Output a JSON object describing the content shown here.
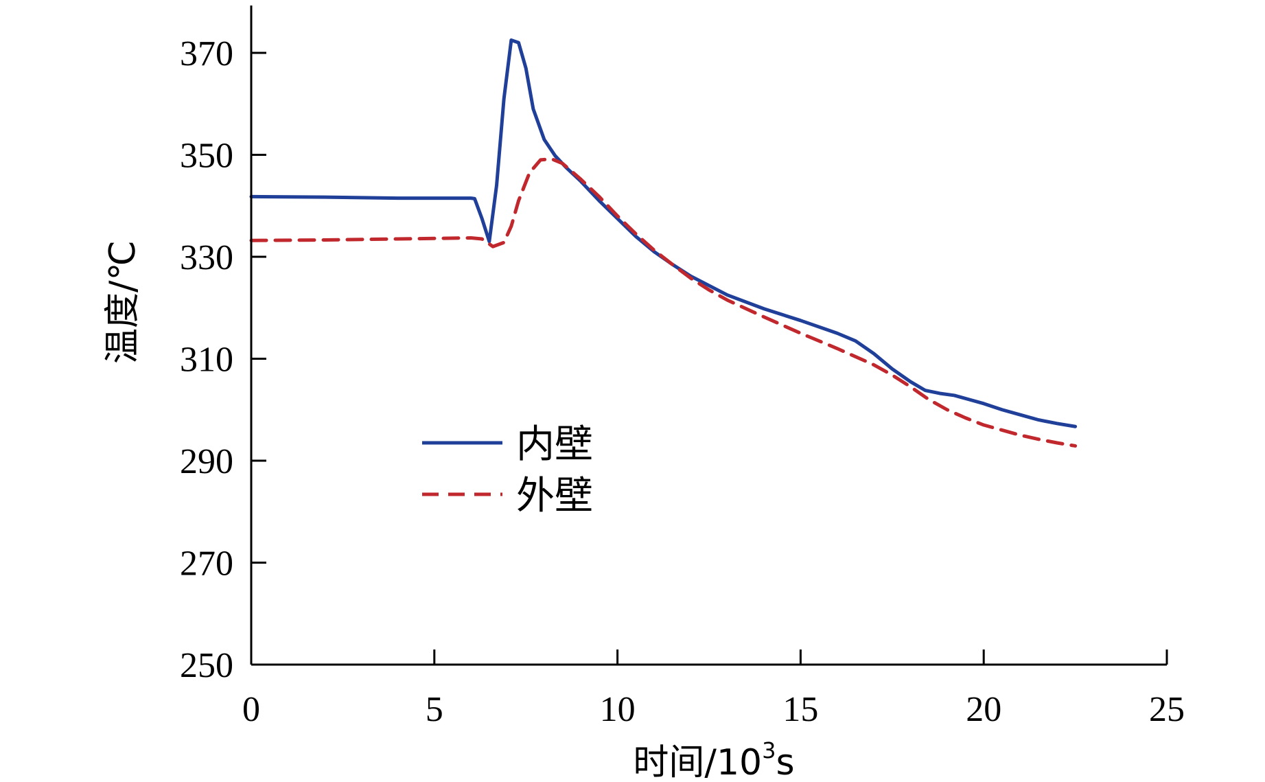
{
  "chart_data": {
    "type": "line",
    "title": "",
    "xlabel": "时间/10",
    "xlabel_sup": "3",
    "xlabel_suffix": "s",
    "ylabel": "温度/℃",
    "xlim": [
      0,
      25
    ],
    "ylim": [
      250,
      378
    ],
    "xticks": [
      0,
      5,
      10,
      15,
      20,
      25
    ],
    "yticks": [
      250,
      270,
      290,
      310,
      330,
      350,
      370
    ],
    "grid": false,
    "legend_position": "center-left",
    "series": [
      {
        "name": "内壁",
        "color": "#1f3f99",
        "style": "solid",
        "x": [
          0,
          2,
          4,
          6,
          6.1,
          6.3,
          6.5,
          6.7,
          6.9,
          7.1,
          7.3,
          7.5,
          7.7,
          8.0,
          8.3,
          8.6,
          9.0,
          9.5,
          10,
          10.5,
          11,
          11.5,
          12,
          13,
          14,
          15,
          16,
          16.5,
          17,
          17.5,
          18,
          18.4,
          18.8,
          19.2,
          19.6,
          20,
          20.5,
          21,
          21.5,
          22,
          22.5
        ],
        "y": [
          341.8,
          341.7,
          341.5,
          341.5,
          341.4,
          337.5,
          333.0,
          344.0,
          361.0,
          372.5,
          372.0,
          367.0,
          359.0,
          353.0,
          349.8,
          347.5,
          344.8,
          341.0,
          337.5,
          334.0,
          331.0,
          328.5,
          326.2,
          322.5,
          319.8,
          317.5,
          315.0,
          313.5,
          311.0,
          308.0,
          305.5,
          303.8,
          303.2,
          302.8,
          302.0,
          301.2,
          300.0,
          299.0,
          298.0,
          297.3,
          296.7
        ]
      },
      {
        "name": "外壁",
        "color": "#c0282d",
        "style": "dashed",
        "x": [
          0,
          2,
          4,
          6,
          6.3,
          6.6,
          6.9,
          7.1,
          7.3,
          7.6,
          7.9,
          8.2,
          8.5,
          9.0,
          9.5,
          10,
          10.5,
          11,
          11.5,
          12,
          12.5,
          13,
          14,
          15,
          16,
          17,
          17.5,
          18,
          18.5,
          19,
          19.5,
          20,
          20.5,
          21,
          21.5,
          22,
          22.5
        ],
        "y": [
          333.2,
          333.3,
          333.5,
          333.7,
          333.5,
          332.0,
          332.8,
          336.0,
          341.0,
          346.5,
          349.0,
          349.2,
          348.3,
          345.2,
          341.8,
          338.0,
          334.5,
          331.3,
          328.5,
          325.8,
          323.5,
          321.5,
          318.2,
          315.0,
          312.0,
          308.8,
          306.8,
          304.5,
          302.0,
          300.0,
          298.4,
          297.0,
          296.0,
          295.0,
          294.2,
          293.5,
          292.9
        ]
      }
    ]
  }
}
